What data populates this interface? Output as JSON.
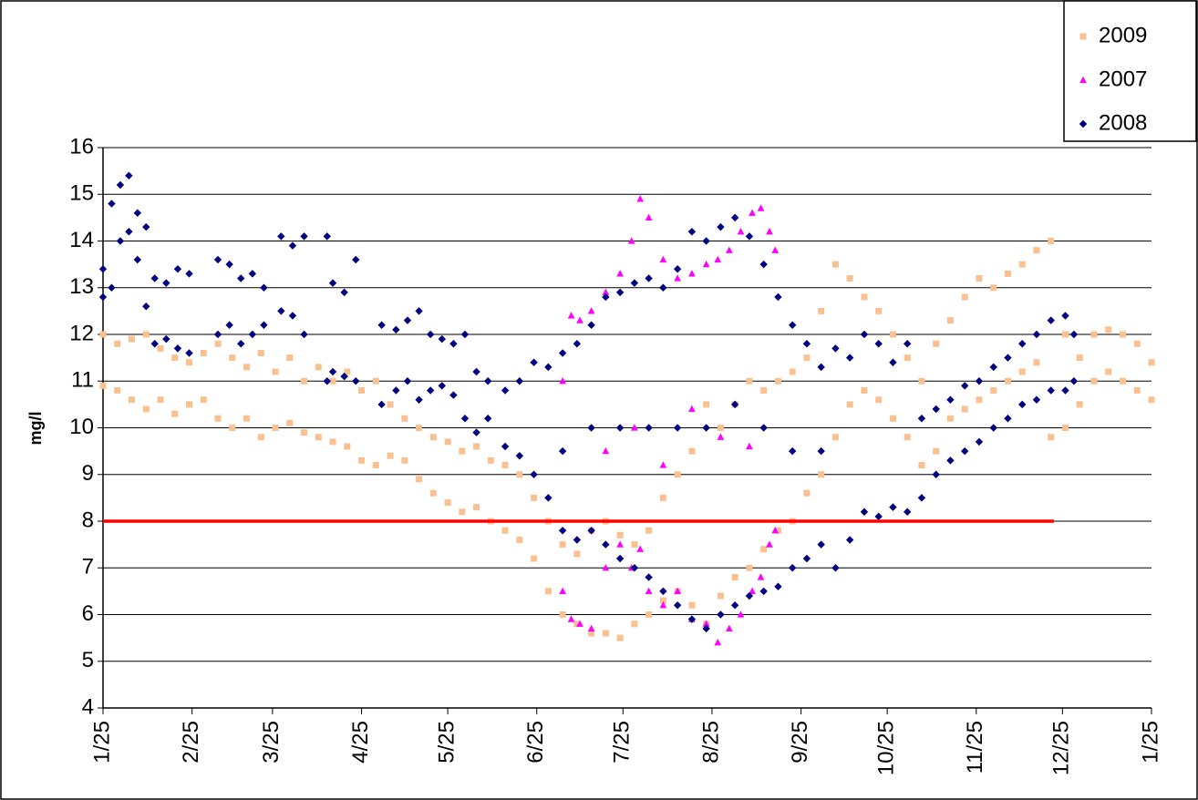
{
  "chart_data": {
    "type": "scatter",
    "y_label": "mg/l",
    "ylim": [
      4,
      16
    ],
    "yticks": [
      4,
      5,
      6,
      7,
      8,
      9,
      10,
      11,
      12,
      13,
      14,
      15,
      16
    ],
    "xlim": [
      0,
      365
    ],
    "xticks": [
      {
        "value": 0,
        "label": "1/25"
      },
      {
        "value": 31,
        "label": "2/25"
      },
      {
        "value": 59,
        "label": "3/25"
      },
      {
        "value": 90,
        "label": "4/25"
      },
      {
        "value": 120,
        "label": "5/25"
      },
      {
        "value": 151,
        "label": "6/25"
      },
      {
        "value": 181,
        "label": "7/25"
      },
      {
        "value": 212,
        "label": "8/25"
      },
      {
        "value": 243,
        "label": "9/25"
      },
      {
        "value": 273,
        "label": "10/25"
      },
      {
        "value": 304,
        "label": "11/25"
      },
      {
        "value": 334,
        "label": "12/25"
      },
      {
        "value": 365,
        "label": "1/25"
      }
    ],
    "grid": true,
    "legend": "top-right",
    "reference_line": {
      "value": 8,
      "x": [
        0,
        331
      ],
      "color": "#ff0000"
    },
    "series": [
      {
        "name": "2009",
        "color": "#fac090",
        "marker": "square",
        "x": [
          0,
          0,
          5,
          5,
          10,
          10,
          15,
          15,
          20,
          20,
          25,
          25,
          30,
          30,
          35,
          35,
          40,
          40,
          45,
          45,
          50,
          50,
          55,
          55,
          60,
          60,
          65,
          65,
          70,
          70,
          75,
          75,
          80,
          80,
          85,
          85,
          90,
          90,
          95,
          95,
          100,
          100,
          105,
          105,
          110,
          110,
          115,
          115,
          120,
          120,
          125,
          125,
          130,
          130,
          135,
          135,
          140,
          140,
          145,
          145,
          150,
          150,
          155,
          155,
          160,
          160,
          165,
          165,
          170,
          170,
          175,
          175,
          180,
          180,
          185,
          185,
          190,
          190,
          195,
          195,
          200,
          200,
          205,
          205,
          210,
          210,
          215,
          215,
          220,
          220,
          225,
          225,
          230,
          230,
          235,
          235,
          240,
          240,
          245,
          245,
          250,
          250,
          255,
          255,
          260,
          260,
          265,
          265,
          270,
          270,
          275,
          275,
          280,
          280,
          285,
          285,
          290,
          290,
          295,
          295,
          300,
          300,
          305,
          305,
          310,
          310,
          315,
          315,
          320,
          320,
          325,
          325,
          330,
          330,
          335,
          335,
          340,
          340,
          345,
          345,
          350,
          350,
          355,
          355,
          360,
          360,
          365,
          365
        ],
        "values": [
          12.0,
          10.9,
          11.8,
          10.8,
          11.9,
          10.6,
          12.0,
          10.4,
          11.7,
          10.6,
          11.5,
          10.3,
          11.4,
          10.5,
          11.6,
          10.6,
          11.8,
          10.2,
          11.5,
          10.0,
          11.3,
          10.2,
          11.6,
          9.8,
          11.2,
          10.0,
          11.5,
          10.1,
          11.0,
          9.9,
          11.3,
          9.8,
          11.0,
          9.7,
          11.2,
          9.6,
          10.8,
          9.3,
          11.0,
          9.2,
          10.5,
          9.4,
          10.2,
          9.3,
          10.0,
          8.9,
          9.8,
          8.6,
          9.7,
          8.4,
          9.5,
          8.2,
          9.6,
          8.3,
          9.3,
          8.0,
          9.2,
          7.8,
          9.0,
          7.6,
          8.5,
          7.2,
          8.0,
          6.5,
          7.5,
          6.0,
          7.3,
          5.8,
          7.8,
          5.6,
          8.0,
          5.6,
          7.7,
          5.5,
          7.5,
          5.8,
          7.8,
          6.0,
          8.5,
          6.3,
          9.0,
          6.5,
          9.5,
          6.2,
          10.5,
          5.8,
          10.0,
          6.4,
          10.5,
          6.8,
          11.0,
          7.0,
          10.8,
          7.4,
          11.0,
          7.8,
          11.2,
          8.0,
          11.5,
          8.6,
          12.5,
          9.0,
          13.5,
          9.8,
          13.2,
          10.5,
          12.8,
          10.8,
          12.5,
          10.6,
          12.0,
          10.2,
          11.5,
          9.8,
          11.0,
          9.2,
          11.8,
          9.5,
          12.3,
          10.2,
          12.8,
          10.4,
          13.2,
          10.6,
          13.0,
          10.8,
          13.3,
          11.0,
          13.5,
          11.2,
          13.8,
          11.4,
          14.0,
          9.8,
          12.0,
          10.0,
          11.5,
          10.5,
          12.0,
          11.0,
          12.1,
          11.2,
          12.0,
          11.0,
          11.8,
          10.8,
          11.4,
          10.6
        ]
      },
      {
        "name": "2007",
        "color": "#ff00ff",
        "marker": "triangle",
        "x": [
          160,
          160,
          163,
          163,
          166,
          166,
          170,
          170,
          175,
          175,
          180,
          180,
          184,
          184,
          187,
          187,
          190,
          190,
          195,
          195,
          200,
          200,
          205,
          205,
          210,
          210,
          214,
          214,
          218,
          218,
          222,
          222,
          226,
          226,
          229,
          229,
          232,
          232,
          234,
          234,
          175,
          185,
          195,
          205,
          215,
          225
        ],
        "values": [
          11.0,
          6.5,
          12.4,
          5.9,
          12.3,
          5.8,
          12.5,
          5.7,
          12.9,
          7.0,
          13.3,
          7.5,
          14.0,
          7.0,
          14.9,
          7.4,
          14.5,
          6.5,
          13.6,
          6.2,
          13.2,
          6.5,
          13.3,
          5.9,
          13.5,
          5.8,
          13.6,
          5.4,
          13.8,
          5.7,
          14.2,
          6.0,
          14.6,
          6.5,
          14.7,
          6.8,
          14.2,
          7.5,
          13.8,
          7.8,
          9.5,
          10.0,
          9.2,
          10.4,
          9.8,
          9.6
        ]
      },
      {
        "name": "2008",
        "color": "#000080",
        "marker": "diamond",
        "x": [
          0,
          0,
          3,
          3,
          6,
          6,
          9,
          9,
          12,
          12,
          15,
          15,
          18,
          18,
          22,
          22,
          26,
          26,
          30,
          30,
          40,
          40,
          44,
          44,
          48,
          48,
          52,
          52,
          56,
          56,
          62,
          62,
          66,
          66,
          70,
          70,
          78,
          78,
          80,
          80,
          84,
          84,
          88,
          88,
          97,
          97,
          102,
          102,
          106,
          106,
          110,
          110,
          114,
          114,
          118,
          118,
          122,
          122,
          126,
          126,
          130,
          130,
          134,
          134,
          140,
          140,
          145,
          145,
          150,
          150,
          155,
          155,
          160,
          160,
          165,
          165,
          170,
          170,
          175,
          175,
          180,
          180,
          185,
          185,
          190,
          190,
          195,
          195,
          200,
          200,
          205,
          205,
          210,
          210,
          215,
          215,
          220,
          220,
          225,
          225,
          230,
          230,
          235,
          235,
          240,
          240,
          245,
          245,
          250,
          250,
          255,
          255,
          260,
          260,
          265,
          265,
          270,
          270,
          275,
          275,
          280,
          280,
          285,
          285,
          290,
          290,
          295,
          295,
          300,
          300,
          305,
          305,
          310,
          310,
          315,
          315,
          320,
          320,
          325,
          325,
          330,
          330,
          335,
          335,
          338,
          338,
          160,
          170,
          180,
          190,
          200,
          210,
          220,
          230,
          240,
          250
        ],
        "values": [
          13.4,
          12.8,
          14.8,
          13.0,
          15.2,
          14.0,
          15.4,
          14.2,
          14.6,
          13.6,
          14.3,
          12.6,
          13.2,
          11.8,
          13.1,
          11.9,
          13.4,
          11.7,
          13.3,
          11.6,
          13.6,
          12.0,
          13.5,
          12.2,
          13.2,
          11.8,
          13.3,
          12.0,
          13.0,
          12.2,
          14.1,
          12.5,
          13.9,
          12.4,
          14.1,
          12.0,
          14.1,
          11.0,
          13.1,
          11.2,
          12.9,
          11.1,
          13.6,
          11.0,
          12.2,
          10.5,
          12.1,
          10.8,
          12.3,
          11.0,
          12.5,
          10.6,
          12.0,
          10.8,
          11.9,
          10.9,
          11.8,
          10.7,
          12.0,
          10.2,
          11.2,
          9.9,
          11.0,
          10.2,
          10.8,
          9.6,
          11.0,
          9.4,
          11.4,
          9.0,
          11.3,
          8.5,
          11.6,
          7.8,
          11.8,
          7.6,
          12.2,
          7.8,
          12.8,
          7.5,
          12.9,
          7.2,
          13.1,
          7.0,
          13.2,
          6.8,
          13.0,
          6.5,
          13.4,
          6.2,
          14.2,
          5.9,
          14.0,
          5.7,
          14.3,
          6.0,
          14.5,
          6.2,
          14.1,
          6.4,
          13.5,
          6.5,
          12.8,
          6.6,
          12.2,
          7.0,
          11.8,
          7.2,
          11.3,
          7.5,
          11.7,
          7.0,
          11.5,
          7.6,
          12.0,
          8.2,
          11.8,
          8.1,
          11.4,
          8.3,
          11.8,
          8.2,
          10.2,
          8.5,
          10.4,
          9.0,
          10.6,
          9.3,
          10.9,
          9.5,
          11.0,
          9.7,
          11.3,
          10.0,
          11.5,
          10.2,
          11.8,
          10.5,
          12.0,
          10.6,
          12.3,
          10.8,
          12.4,
          10.8,
          12.0,
          11.0,
          9.5,
          10.0,
          10.0,
          10.0,
          10.0,
          10.0,
          10.5,
          10.0,
          9.5,
          9.5
        ]
      }
    ]
  }
}
